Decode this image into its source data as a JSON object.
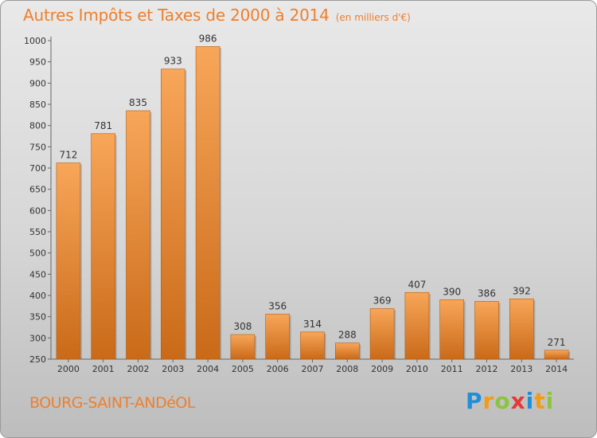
{
  "chart_data": {
    "type": "bar",
    "title": "Autres Impôts et Taxes de 2000 à 2014",
    "unit_label": "(en milliers d'€)",
    "categories": [
      "2000",
      "2001",
      "2002",
      "2003",
      "2004",
      "2005",
      "2006",
      "2007",
      "2008",
      "2009",
      "2010",
      "2011",
      "2012",
      "2013",
      "2014"
    ],
    "values": [
      712,
      781,
      835,
      933,
      986,
      308,
      356,
      314,
      288,
      369,
      407,
      390,
      386,
      392,
      271
    ],
    "ylim": [
      250,
      1000
    ],
    "yticks": [
      250,
      300,
      350,
      400,
      450,
      500,
      550,
      600,
      650,
      700,
      750,
      800,
      850,
      900,
      950,
      1000
    ],
    "xlabel": "",
    "ylabel": "",
    "grid": false,
    "bar_color": "#f0872a",
    "bar_color_light": "#f8a659",
    "bar_color_dark": "#c96a18"
  },
  "footer": {
    "city": "BOURG-SAINT-ANDéOL",
    "logo_letters": [
      "P",
      "r",
      "o",
      "x",
      "i",
      "t",
      "i"
    ],
    "logo_colors": [
      "#1f8fd9",
      "#f39c12",
      "#8bc53f",
      "#e53935",
      "#1f8fd9",
      "#f39c12",
      "#8bc53f"
    ]
  },
  "colors": {
    "accent": "#ee7f2d"
  }
}
